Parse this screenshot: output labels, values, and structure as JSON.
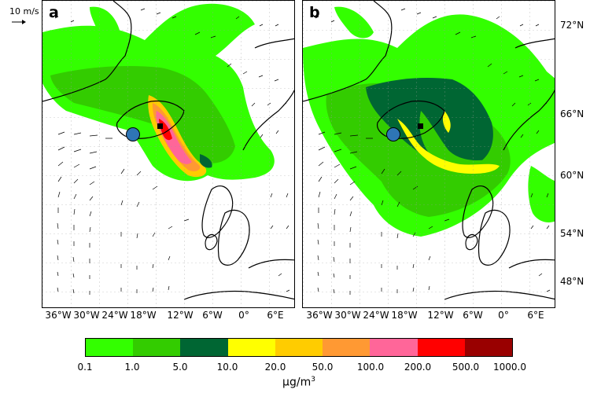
{
  "wind_reference": {
    "label": "10 m/s"
  },
  "panels": [
    {
      "letter": "a"
    },
    {
      "letter": "b"
    }
  ],
  "lon_labels": [
    "36°W",
    "30°W",
    "24°W",
    "18°W",
    "12°W",
    "6°W",
    "0°",
    "6°E"
  ],
  "lat_labels": [
    "72°N",
    "66°N",
    "60°N",
    "54°N",
    "48°N"
  ],
  "colorbar": {
    "colors": [
      "#33ff00",
      "#33cc00",
      "#006633",
      "#ffff00",
      "#ffcc00",
      "#ff9933",
      "#ff6699",
      "#ff0000",
      "#990000"
    ],
    "ticks": [
      "0.1",
      "1.0",
      "5.0",
      "10.0",
      "20.0",
      "50.0",
      "100.0",
      "200.0",
      "500.0",
      "1000.0"
    ],
    "unit_label": "μg/m",
    "unit_exp": "3"
  },
  "markers": {
    "site_color": "#2e75b6",
    "source_color": "#000000"
  }
}
